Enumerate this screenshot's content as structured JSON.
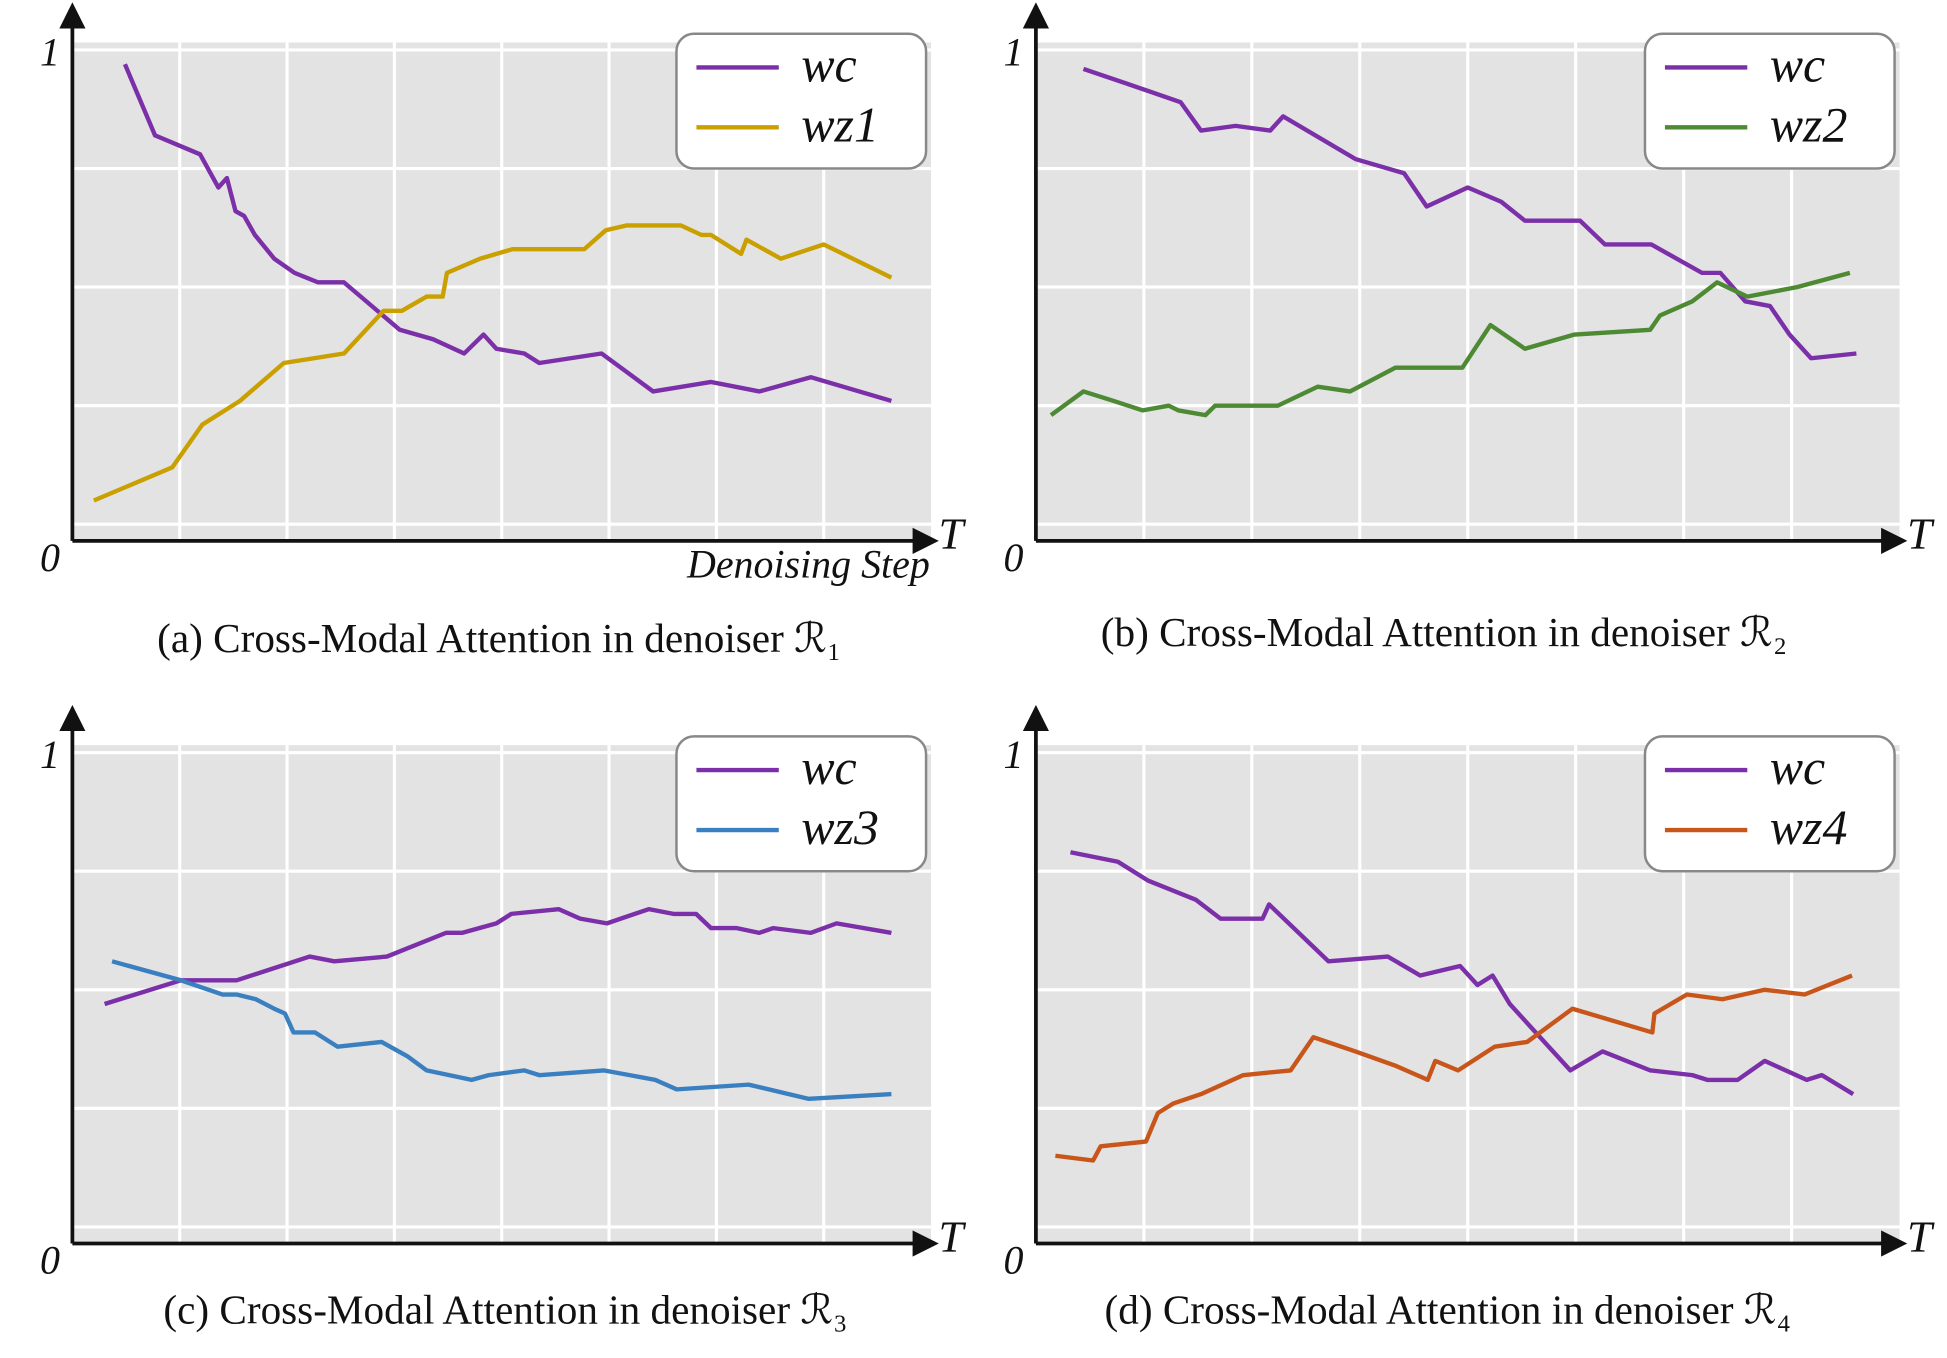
{
  "chart_data": [
    {
      "type": "line",
      "title": "(a) Cross-Modal Attention in denoiser ℛ₁",
      "xlabel": "Denoising Step",
      "xlim": [
        0,
        8
      ],
      "ylim": [
        -0.035,
        1
      ],
      "yticks": [
        0,
        1
      ],
      "xticks": [
        {
          "value": 8,
          "label": "T"
        }
      ],
      "xgrid": [
        1,
        2,
        3,
        4,
        5,
        6,
        7
      ],
      "ygrid": [
        0,
        0.25,
        0.5,
        0.75,
        1
      ],
      "grid": true,
      "legend": "upper right",
      "series": [
        {
          "name": "wc",
          "color": "#7b2fa8",
          "x": [
            0.49,
            0.77,
            1.19,
            1.36,
            1.44,
            1.52,
            1.6,
            1.7,
            1.88,
            2.07,
            2.29,
            2.53,
            3.05,
            3.36,
            3.65,
            3.83,
            3.95,
            4.21,
            4.35,
            4.93,
            5.41,
            5.95,
            6.4,
            6.88,
            7.63
          ],
          "values": [
            0.97,
            0.82,
            0.78,
            0.71,
            0.73,
            0.66,
            0.65,
            0.61,
            0.56,
            0.53,
            0.51,
            0.51,
            0.41,
            0.39,
            0.36,
            0.4,
            0.37,
            0.36,
            0.34,
            0.36,
            0.28,
            0.3,
            0.28,
            0.31,
            0.26
          ]
        },
        {
          "name": "wz1",
          "color": "#c9a000",
          "x": [
            0.2,
            0.93,
            1.21,
            1.56,
            1.97,
            2.53,
            2.9,
            3.07,
            3.3,
            3.45,
            3.49,
            3.8,
            4.1,
            4.77,
            4.97,
            5.16,
            5.67,
            5.86,
            5.95,
            6.23,
            6.28,
            6.6,
            7.0,
            7.63
          ],
          "values": [
            0.05,
            0.12,
            0.21,
            0.26,
            0.34,
            0.36,
            0.45,
            0.45,
            0.48,
            0.48,
            0.53,
            0.56,
            0.58,
            0.58,
            0.62,
            0.63,
            0.63,
            0.61,
            0.61,
            0.57,
            0.6,
            0.56,
            0.59,
            0.52
          ]
        }
      ]
    },
    {
      "type": "line",
      "title": "(b) Cross-Modal Attention in denoiser ℛ₂",
      "xlim": [
        0,
        8
      ],
      "ylim": [
        -0.035,
        1
      ],
      "yticks": [
        0,
        1
      ],
      "xticks": [
        {
          "value": 8,
          "label": "T"
        }
      ],
      "xgrid": [
        1,
        2,
        3,
        4,
        5,
        6,
        7
      ],
      "ygrid": [
        0,
        0.25,
        0.5,
        0.75,
        1
      ],
      "grid": true,
      "legend": "upper right",
      "series": [
        {
          "name": "wc",
          "color": "#7b2fa8",
          "x": [
            0.44,
            0.83,
            1.34,
            1.53,
            1.85,
            2.17,
            2.29,
            2.96,
            3.41,
            3.62,
            4.0,
            4.31,
            4.53,
            5.04,
            5.27,
            5.7,
            6.17,
            6.34,
            6.57,
            6.8,
            6.98,
            7.18,
            7.6
          ],
          "values": [
            0.96,
            0.93,
            0.89,
            0.83,
            0.84,
            0.83,
            0.86,
            0.77,
            0.74,
            0.67,
            0.71,
            0.68,
            0.64,
            0.64,
            0.59,
            0.59,
            0.53,
            0.53,
            0.47,
            0.46,
            0.4,
            0.35,
            0.36
          ]
        },
        {
          "name": "wz2",
          "color": "#4e8a34",
          "x": [
            0.14,
            0.44,
            0.72,
            0.99,
            1.23,
            1.32,
            1.57,
            1.66,
            2.24,
            2.61,
            2.91,
            3.33,
            3.65,
            3.95,
            4.21,
            4.53,
            4.99,
            5.69,
            5.78,
            6.08,
            6.31,
            6.59,
            7.05,
            7.54
          ],
          "values": [
            0.23,
            0.28,
            0.26,
            0.24,
            0.25,
            0.24,
            0.23,
            0.25,
            0.25,
            0.29,
            0.28,
            0.33,
            0.33,
            0.33,
            0.42,
            0.37,
            0.4,
            0.41,
            0.44,
            0.47,
            0.51,
            0.48,
            0.5,
            0.53
          ]
        }
      ]
    },
    {
      "type": "line",
      "title": "(c) Cross-Modal Attention in denoiser ℛ₃",
      "xlim": [
        0,
        8
      ],
      "ylim": [
        -0.035,
        1
      ],
      "yticks": [
        0,
        1
      ],
      "xticks": [
        {
          "value": 8,
          "label": "T"
        }
      ],
      "xgrid": [
        1,
        2,
        3,
        4,
        5,
        6,
        7
      ],
      "ygrid": [
        0,
        0.25,
        0.5,
        0.75,
        1
      ],
      "grid": true,
      "legend": "upper right",
      "series": [
        {
          "name": "wc",
          "color": "#7b2fa8",
          "x": [
            0.3,
            1.01,
            1.53,
            2.21,
            2.44,
            2.93,
            3.48,
            3.63,
            3.95,
            4.09,
            4.53,
            4.73,
            4.98,
            5.37,
            5.6,
            5.81,
            5.95,
            6.19,
            6.4,
            6.53,
            6.88,
            7.12,
            7.63
          ],
          "values": [
            0.47,
            0.52,
            0.52,
            0.57,
            0.56,
            0.57,
            0.62,
            0.62,
            0.64,
            0.66,
            0.67,
            0.65,
            0.64,
            0.67,
            0.66,
            0.66,
            0.63,
            0.63,
            0.62,
            0.63,
            0.62,
            0.64,
            0.62
          ]
        },
        {
          "name": "wz3",
          "color": "#3a7fc0",
          "x": [
            0.37,
            1.01,
            1.4,
            1.53,
            1.71,
            1.88,
            1.98,
            2.06,
            2.26,
            2.47,
            2.88,
            3.12,
            3.3,
            3.72,
            3.88,
            4.21,
            4.35,
            4.95,
            5.43,
            5.63,
            6.3,
            6.86,
            7.63
          ],
          "values": [
            0.56,
            0.52,
            0.49,
            0.49,
            0.48,
            0.46,
            0.45,
            0.41,
            0.41,
            0.38,
            0.39,
            0.36,
            0.33,
            0.31,
            0.32,
            0.33,
            0.32,
            0.33,
            0.31,
            0.29,
            0.3,
            0.27,
            0.28
          ]
        }
      ]
    },
    {
      "type": "line",
      "title": "(d) Cross-Modal Attention in denoiser ℛ₄",
      "xlim": [
        0,
        8
      ],
      "ylim": [
        -0.035,
        1
      ],
      "yticks": [
        0,
        1
      ],
      "xticks": [
        {
          "value": 8,
          "label": "T"
        }
      ],
      "xgrid": [
        1,
        2,
        3,
        4,
        5,
        6,
        7
      ],
      "ygrid": [
        0,
        0.25,
        0.5,
        0.75,
        1
      ],
      "grid": true,
      "legend": "upper right",
      "series": [
        {
          "name": "wc",
          "color": "#7b2fa8",
          "x": [
            0.32,
            0.76,
            1.04,
            1.48,
            1.71,
            2.1,
            2.16,
            2.71,
            3.26,
            3.56,
            3.93,
            4.09,
            4.23,
            4.39,
            4.95,
            5.25,
            5.69,
            6.08,
            6.22,
            6.5,
            6.75,
            7.14,
            7.28,
            7.57
          ],
          "values": [
            0.79,
            0.77,
            0.73,
            0.69,
            0.65,
            0.65,
            0.68,
            0.56,
            0.57,
            0.53,
            0.55,
            0.51,
            0.53,
            0.47,
            0.33,
            0.37,
            0.33,
            0.32,
            0.31,
            0.31,
            0.35,
            0.31,
            0.32,
            0.28
          ]
        },
        {
          "name": "wz4",
          "color": "#c8561a",
          "x": [
            0.18,
            0.53,
            0.6,
            1.02,
            1.13,
            1.27,
            1.53,
            1.92,
            2.36,
            2.57,
            2.96,
            3.33,
            3.63,
            3.7,
            3.91,
            4.25,
            4.55,
            4.97,
            5.71,
            5.73,
            6.03,
            6.36,
            6.75,
            7.12,
            7.56
          ],
          "values": [
            0.15,
            0.14,
            0.17,
            0.18,
            0.24,
            0.26,
            0.28,
            0.32,
            0.33,
            0.4,
            0.37,
            0.34,
            0.31,
            0.35,
            0.33,
            0.38,
            0.39,
            0.46,
            0.41,
            0.45,
            0.49,
            0.48,
            0.5,
            0.49,
            0.53
          ]
        }
      ]
    }
  ]
}
